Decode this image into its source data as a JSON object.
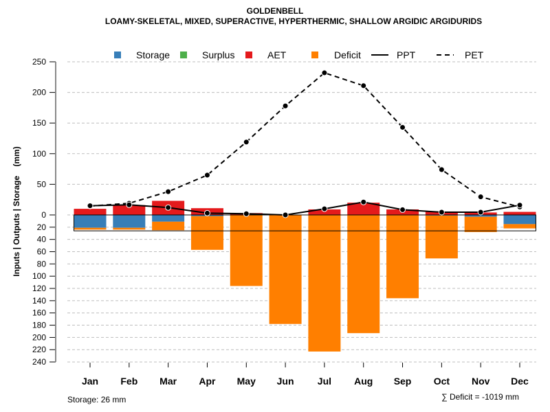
{
  "chart_data": {
    "type": "bar",
    "title": "GOLDENBELL",
    "subtitle": "LOAMY-SKELETAL, MIXED, SUPERACTIVE, HYPERTHERMIC, SHALLOW ARGIDIC ARGIDURIDS",
    "ylabel": "Inputs | Outputs | Storage    (mm)",
    "xlabel": "",
    "categories": [
      "Jan",
      "Feb",
      "Mar",
      "Apr",
      "May",
      "Jun",
      "Jul",
      "Aug",
      "Sep",
      "Oct",
      "Nov",
      "Dec"
    ],
    "ylim_up": [
      0,
      250
    ],
    "ylim_down": [
      0,
      240
    ],
    "yticks_up": [
      0,
      50,
      100,
      150,
      200,
      250
    ],
    "yticks_down": [
      20,
      40,
      60,
      80,
      100,
      120,
      140,
      160,
      180,
      200,
      220,
      240
    ],
    "grid": true,
    "legend_position": "top",
    "legend": [
      {
        "name": "Storage",
        "kind": "square",
        "color": "#377EB8"
      },
      {
        "name": "Surplus",
        "kind": "square",
        "color": "#4DAF4A"
      },
      {
        "name": "AET",
        "kind": "square",
        "color": "#E41A1C"
      },
      {
        "name": "Deficit",
        "kind": "square",
        "color": "#FF7F00"
      },
      {
        "name": "PPT",
        "kind": "line-solid",
        "color": "#000000"
      },
      {
        "name": "PET",
        "kind": "line-dashed",
        "color": "#000000"
      }
    ],
    "series": [
      {
        "name": "AET",
        "direction": "up",
        "color": "#E41A1C",
        "values": [
          10,
          16,
          23,
          11,
          3,
          0,
          9,
          20,
          9,
          5,
          4,
          5
        ]
      },
      {
        "name": "Surplus",
        "direction": "up",
        "color": "#4DAF4A",
        "values": [
          0,
          0,
          0,
          0,
          0,
          0,
          0,
          0,
          0,
          0,
          0,
          0
        ]
      },
      {
        "name": "Storage",
        "direction": "down",
        "color": "#377EB8",
        "values": [
          21,
          21,
          11,
          2,
          0,
          0,
          0,
          0,
          0,
          1,
          3,
          15
        ]
      },
      {
        "name": "Deficit",
        "direction": "down",
        "color": "#FF7F00",
        "values": [
          3,
          3,
          14,
          55,
          116,
          178,
          223,
          193,
          136,
          70,
          25,
          7
        ]
      },
      {
        "name": "PPT",
        "type": "line",
        "style": "solid",
        "color": "#000000",
        "values": [
          15,
          16.5,
          12,
          3,
          2,
          0,
          10,
          21,
          8.5,
          4.5,
          4.5,
          16
        ]
      },
      {
        "name": "PET",
        "type": "line",
        "style": "dashed",
        "color": "#000000",
        "values": [
          14.5,
          19,
          38,
          65,
          119,
          178,
          232,
          211,
          143,
          74,
          29.5,
          13
        ]
      }
    ],
    "storage_capacity": 26,
    "annotations": {
      "storage": "Storage: 26 mm",
      "deficit_sum": "∑ Deficit = -1019 mm"
    }
  }
}
